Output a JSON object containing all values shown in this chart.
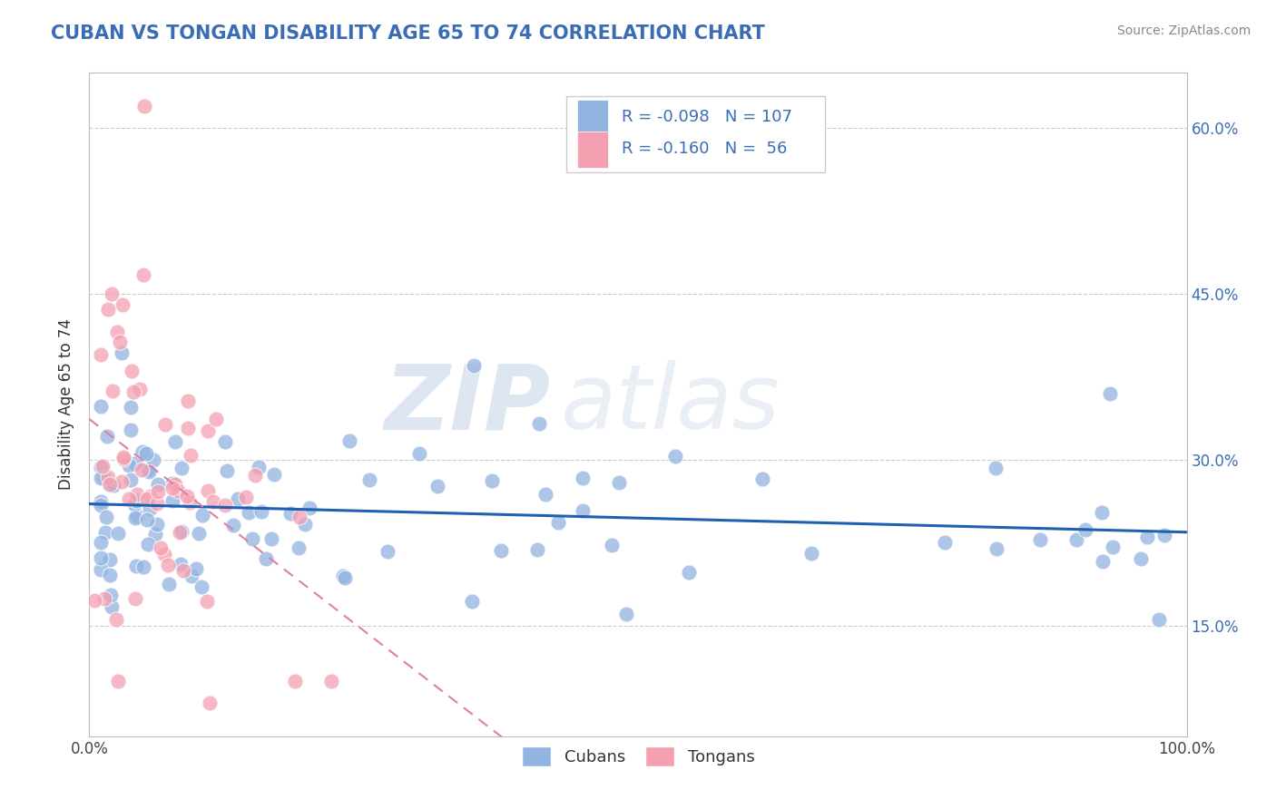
{
  "title": "CUBAN VS TONGAN DISABILITY AGE 65 TO 74 CORRELATION CHART",
  "source": "Source: ZipAtlas.com",
  "ylabel": "Disability Age 65 to 74",
  "xlim": [
    0.0,
    1.0
  ],
  "ylim": [
    0.05,
    0.65
  ],
  "xtick_positions": [
    0.0,
    0.25,
    0.5,
    0.75,
    1.0
  ],
  "xtick_labels": [
    "0.0%",
    "",
    "",
    "",
    "100.0%"
  ],
  "ytick_positions": [
    0.15,
    0.3,
    0.45,
    0.6
  ],
  "ytick_labels": [
    "15.0%",
    "30.0%",
    "45.0%",
    "60.0%"
  ],
  "cuban_color": "#92b4e0",
  "tongan_color": "#f4a0b0",
  "cuban_line_color": "#2060b0",
  "tongan_line_color": "#e080a0",
  "cuban_R": -0.098,
  "cuban_N": 107,
  "tongan_R": -0.16,
  "tongan_N": 56,
  "background_color": "#ffffff",
  "grid_color": "#cccccc",
  "title_color": "#3a6db5",
  "source_color": "#888888",
  "watermark_zip": "ZIP",
  "watermark_atlas": "atlas"
}
